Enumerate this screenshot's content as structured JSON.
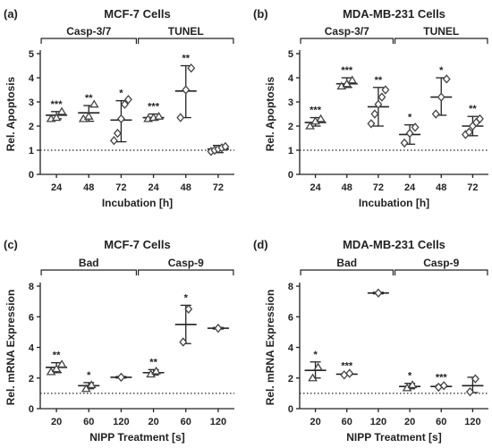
{
  "colors": {
    "ink": "#222222",
    "marker": "#444444",
    "background": "#ffffff"
  },
  "chart_data": [
    {
      "id": "a",
      "letter": "(a)",
      "type": "scatter",
      "title": "MCF-7 Cells",
      "xlabel": "Incubation [h]",
      "ylabel": "Rel. Apoptosis",
      "ylim": [
        0,
        5
      ],
      "yticks": [
        0,
        1,
        2,
        3,
        4,
        5
      ],
      "reference_line": 1,
      "categories": [
        "24",
        "48",
        "72",
        "24",
        "48",
        "72"
      ],
      "groups": [
        {
          "label": "Casp-3/7",
          "from": 0,
          "to": 2
        },
        {
          "label": "TUNEL",
          "from": 3,
          "to": 5
        }
      ],
      "series": [
        {
          "marker": "triangle",
          "mean": 2.45,
          "err": [
            2.3,
            2.6
          ],
          "points": [
            2.3,
            2.35,
            2.6
          ],
          "sig": "***"
        },
        {
          "marker": "triangle",
          "mean": 2.55,
          "err": [
            2.2,
            2.85
          ],
          "points": [
            2.3,
            2.4,
            2.9
          ],
          "sig": "**"
        },
        {
          "marker": "diamond",
          "mean": 2.25,
          "err": [
            1.35,
            3.05
          ],
          "points": [
            1.4,
            1.7,
            2.3,
            2.9,
            3.1
          ],
          "sig": "*"
        },
        {
          "marker": "triangle",
          "mean": 2.35,
          "err": [
            2.25,
            2.5
          ],
          "points": [
            2.3,
            2.35,
            2.4
          ],
          "sig": "***"
        },
        {
          "marker": "diamond",
          "mean": 3.45,
          "err": [
            2.35,
            4.5
          ],
          "points": [
            2.35,
            3.5,
            4.4
          ],
          "sig": "**"
        },
        {
          "marker": "diamond",
          "mean": 1.05,
          "err": [
            0.9,
            1.2
          ],
          "points": [
            0.95,
            1.0,
            1.05,
            1.1,
            1.15
          ],
          "sig": ""
        }
      ]
    },
    {
      "id": "b",
      "letter": "(b)",
      "type": "scatter",
      "title": "MDA-MB-231 Cells",
      "xlabel": "Incubation [h]",
      "ylabel": "Rel. Apoptosis",
      "ylim": [
        0,
        5
      ],
      "yticks": [
        0,
        1,
        2,
        3,
        4,
        5
      ],
      "reference_line": 1,
      "categories": [
        "24",
        "48",
        "72",
        "24",
        "48",
        "72"
      ],
      "groups": [
        {
          "label": "Casp-3/7",
          "from": 0,
          "to": 2
        },
        {
          "label": "TUNEL",
          "from": 3,
          "to": 5
        }
      ],
      "series": [
        {
          "marker": "triangle",
          "mean": 2.15,
          "err": [
            2.0,
            2.35
          ],
          "points": [
            2.0,
            2.2,
            2.3
          ],
          "sig": "***"
        },
        {
          "marker": "triangle",
          "mean": 3.75,
          "err": [
            3.6,
            4.0
          ],
          "points": [
            3.65,
            3.75,
            3.9
          ],
          "sig": "***"
        },
        {
          "marker": "diamond",
          "mean": 2.8,
          "err": [
            2.0,
            3.6
          ],
          "points": [
            2.1,
            2.5,
            2.9,
            3.2,
            3.5
          ],
          "sig": "**"
        },
        {
          "marker": "diamond",
          "mean": 1.65,
          "err": [
            1.25,
            2.05
          ],
          "points": [
            1.3,
            1.7,
            1.95
          ],
          "sig": "*"
        },
        {
          "marker": "diamond",
          "mean": 3.2,
          "err": [
            2.45,
            4.0
          ],
          "points": [
            2.5,
            3.2,
            3.95
          ],
          "sig": "*"
        },
        {
          "marker": "diamond",
          "mean": 2.0,
          "err": [
            1.6,
            2.4
          ],
          "points": [
            1.65,
            1.75,
            2.0,
            2.15,
            2.3
          ],
          "sig": "**"
        }
      ]
    },
    {
      "id": "c",
      "letter": "(c)",
      "type": "scatter",
      "title": "MCF-7 Cells",
      "xlabel": "NIPP Treatment [s]",
      "ylabel": "Rel. mRNA Expression",
      "ylim": [
        0,
        8
      ],
      "yticks": [
        0,
        2,
        4,
        6,
        8
      ],
      "reference_line": 1,
      "categories": [
        "20",
        "60",
        "120",
        "20",
        "60",
        "120"
      ],
      "groups": [
        {
          "label": "Bad",
          "from": 0,
          "to": 2
        },
        {
          "label": "Casp-9",
          "from": 3,
          "to": 5
        }
      ],
      "series": [
        {
          "marker": "triangle",
          "mean": 2.7,
          "err": [
            2.35,
            3.0
          ],
          "points": [
            2.4,
            2.6,
            2.9
          ],
          "sig": "**"
        },
        {
          "marker": "triangle",
          "mean": 1.5,
          "err": [
            1.3,
            1.7
          ],
          "points": [
            1.3,
            1.55
          ],
          "sig": "*"
        },
        {
          "marker": "diamond",
          "mean": 2.05,
          "err": [
            2.0,
            2.1
          ],
          "points": [
            2.05
          ],
          "sig": ""
        },
        {
          "marker": "triangle",
          "mean": 2.35,
          "err": [
            2.2,
            2.55
          ],
          "points": [
            2.25,
            2.45
          ],
          "sig": "**"
        },
        {
          "marker": "diamond",
          "mean": 5.5,
          "err": [
            4.25,
            6.75
          ],
          "points": [
            4.35,
            6.5
          ],
          "sig": "*"
        },
        {
          "marker": "diamond",
          "mean": 5.25,
          "err": [
            5.2,
            5.3
          ],
          "points": [
            5.25
          ],
          "sig": ""
        }
      ]
    },
    {
      "id": "d",
      "letter": "(d)",
      "type": "scatter",
      "title": "MDA-MB-231 Cells",
      "xlabel": "NIPP Treatment [s]",
      "ylabel": "Rel. mRNA Expression",
      "ylim": [
        0,
        8
      ],
      "yticks": [
        0,
        2,
        4,
        6,
        8
      ],
      "reference_line": 1,
      "categories": [
        "20",
        "60",
        "120",
        "20",
        "60",
        "120"
      ],
      "groups": [
        {
          "label": "Bad",
          "from": 0,
          "to": 2
        },
        {
          "label": "Casp-9",
          "from": 3,
          "to": 5
        }
      ],
      "series": [
        {
          "marker": "triangle",
          "mean": 2.5,
          "err": [
            2.0,
            3.05
          ],
          "points": [
            2.0,
            2.7
          ],
          "sig": "*"
        },
        {
          "marker": "diamond",
          "mean": 2.25,
          "err": [
            2.2,
            2.3
          ],
          "points": [
            2.2,
            2.3
          ],
          "sig": "***"
        },
        {
          "marker": "diamond",
          "mean": 7.55,
          "err": [
            7.5,
            7.6
          ],
          "points": [
            7.55
          ],
          "sig": ""
        },
        {
          "marker": "triangle",
          "mean": 1.45,
          "err": [
            1.3,
            1.65
          ],
          "points": [
            1.35,
            1.55
          ],
          "sig": "*"
        },
        {
          "marker": "diamond",
          "mean": 1.45,
          "err": [
            1.4,
            1.55
          ],
          "points": [
            1.4,
            1.5
          ],
          "sig": "***"
        },
        {
          "marker": "diamond",
          "mean": 1.5,
          "err": [
            1.05,
            2.05
          ],
          "points": [
            1.1,
            1.95
          ],
          "sig": ""
        }
      ]
    }
  ]
}
